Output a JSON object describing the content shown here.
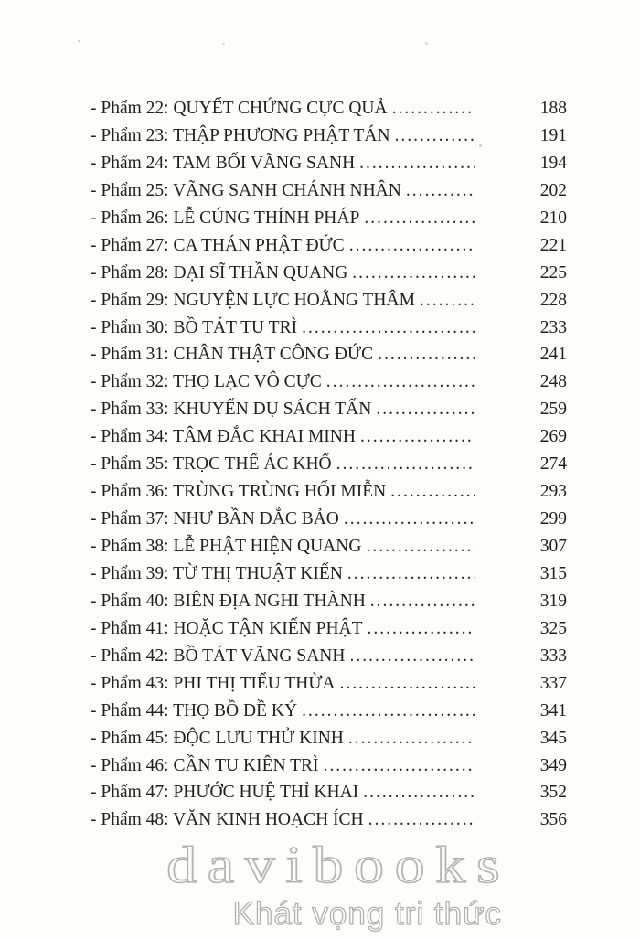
{
  "page": {
    "background": "#fdfdfb",
    "text_color": "#222120"
  },
  "toc": {
    "entries": [
      {
        "label": "- Phẩm 22: QUYẾT CHỨNG CỰC QUẢ",
        "page": "188"
      },
      {
        "label": "- Phẩm 23: THẬP PHƯƠNG PHẬT TÁN",
        "page": "191"
      },
      {
        "label": "- Phẩm 24: TAM BỐI VÃNG SANH",
        "page": "194"
      },
      {
        "label": "- Phẩm 25: VÃNG SANH CHÁNH NHÂN",
        "page": "202"
      },
      {
        "label": "- Phẩm 26: LỄ CÚNG THÍNH PHÁP",
        "page": "210"
      },
      {
        "label": "- Phẩm 27: CA THÁN PHẬT ĐỨC",
        "page": "221"
      },
      {
        "label": "- Phẩm 28: ĐẠI SĨ THẦN QUANG",
        "page": "225"
      },
      {
        "label": "- Phẩm 29: NGUYỆN LỰC HOẰNG THÂM",
        "page": "228"
      },
      {
        "label": "- Phẩm 30: BỒ TÁT TU TRÌ",
        "page": "233"
      },
      {
        "label": "- Phẩm 31: CHÂN THẬT CÔNG ĐỨC",
        "page": "241"
      },
      {
        "label": "- Phẩm 32: THỌ LẠC VÔ CỰC",
        "page": "248"
      },
      {
        "label": "- Phẩm 33: KHUYẾN DỤ SÁCH TẤN",
        "page": "259"
      },
      {
        "label": "- Phẩm 34: TÂM ĐẮC KHAI MINH",
        "page": "269"
      },
      {
        "label": "- Phẩm 35: TRỌC THẾ ÁC KHỔ",
        "page": "274"
      },
      {
        "label": "- Phẩm 36: TRÙNG TRÙNG HỐI MIỄN",
        "page": "293"
      },
      {
        "label": "- Phẩm 37: NHƯ BẦN ĐẮC BẢO",
        "page": "299"
      },
      {
        "label": "- Phẩm 38: LỄ PHẬT HIỆN QUANG",
        "page": "307"
      },
      {
        "label": "- Phẩm 39: TỪ THỊ THUẬT KIẾN",
        "page": "315"
      },
      {
        "label": "- Phẩm 40: BIÊN ĐỊA NGHI THÀNH",
        "page": "319"
      },
      {
        "label": "- Phẩm 41: HOẶC TẬN KIẾN PHẬT",
        "page": "325"
      },
      {
        "label": "- Phẩm 42: BỒ TÁT VÃNG SANH",
        "page": "333"
      },
      {
        "label": "- Phẩm 43: PHI THỊ TIỂU THỪA",
        "page": "337"
      },
      {
        "label": "- Phẩm 44: THỌ BỒ ĐỀ KÝ",
        "page": "341"
      },
      {
        "label": "- Phẩm 45: ĐỘC LƯU THỬ KINH",
        "page": "345"
      },
      {
        "label": "- Phẩm 46: CẦN TU KIÊN TRÌ",
        "page": "349"
      },
      {
        "label": "- Phẩm 47: PHƯỚC HUỆ THỈ KHAI",
        "page": "352"
      },
      {
        "label": "- Phẩm 48: VĂN KINH HOẠCH ÍCH",
        "page": "356"
      }
    ]
  },
  "watermark": {
    "logo": "davibooks",
    "tagline": "Khát vọng tri thức",
    "color": "#b5b5b3"
  }
}
